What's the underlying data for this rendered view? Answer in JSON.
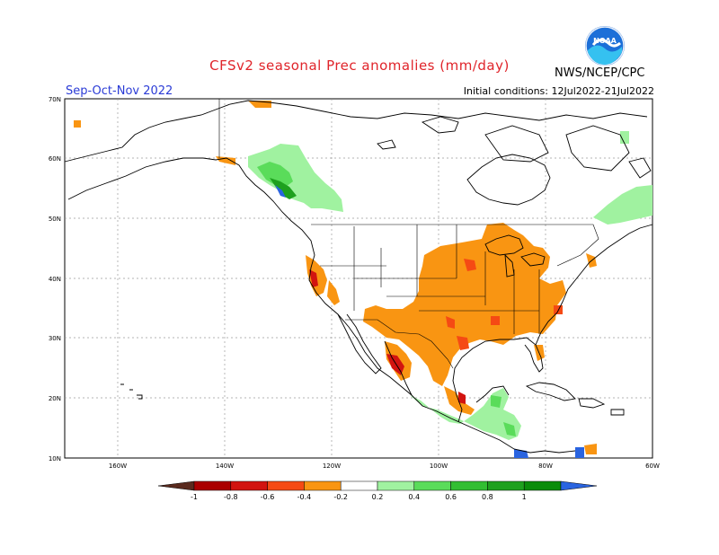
{
  "title": "CFSv2 seasonal Prec anomalies (mm/day)",
  "season": "Sep-Oct-Nov 2022",
  "initial_conditions": "Initial conditions: 12Jul2022-21Jul2022",
  "agency": "NWS/NCEP/CPC",
  "logo_text": "NOAA",
  "lat_labels": [
    "70N",
    "60N",
    "50N",
    "40N",
    "30N",
    "20N",
    "10N"
  ],
  "lon_labels": [
    "160W",
    "140W",
    "120W",
    "100W",
    "80W",
    "60W"
  ],
  "colorbar": {
    "ticks": [
      "-1",
      "-0.8",
      "-0.6",
      "-0.4",
      "-0.2",
      "0.2",
      "0.4",
      "0.6",
      "0.8",
      "1"
    ],
    "colors": [
      "#5a2a1e",
      "#aa0000",
      "#d21410",
      "#f54a14",
      "#f99512",
      "#ffffff",
      "#a0f2a0",
      "#5adc5a",
      "#32be32",
      "#1ea01e",
      "#0a8c0a",
      "#2a64e0"
    ]
  }
}
